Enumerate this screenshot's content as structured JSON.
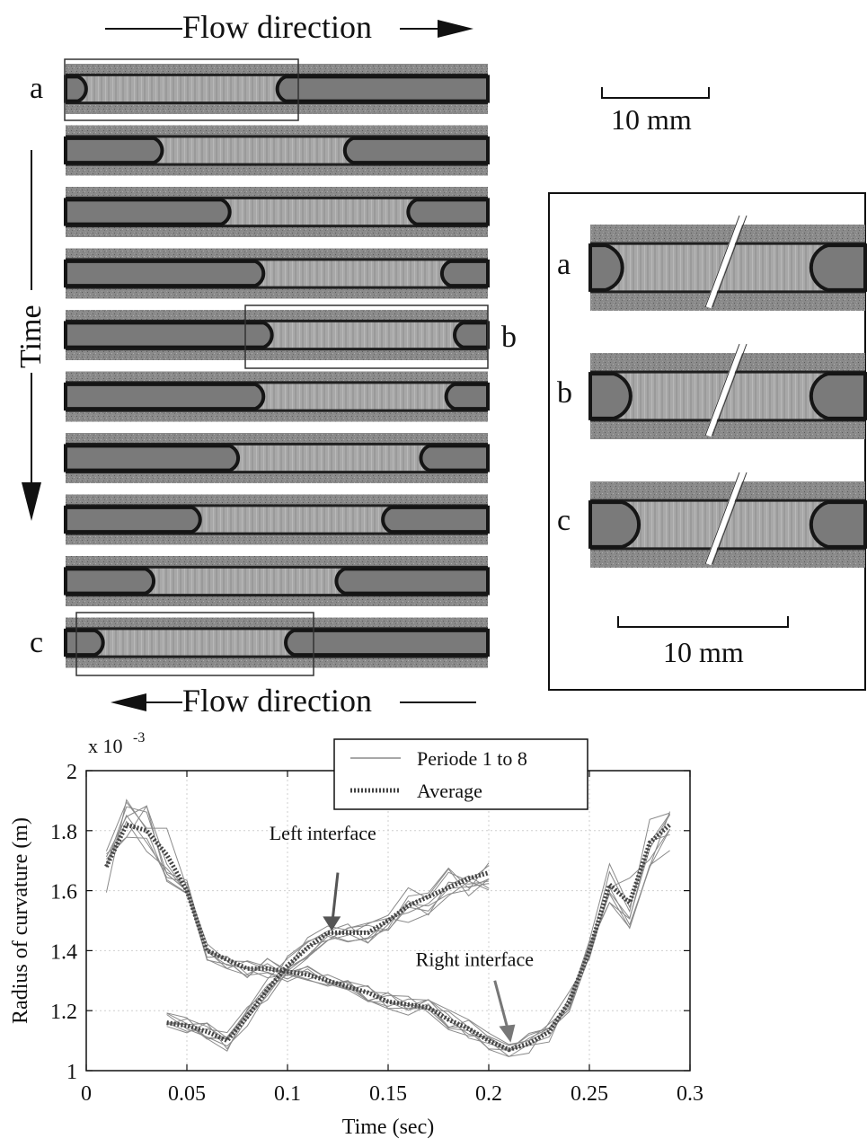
{
  "figure": {
    "flow_top": "Flow direction",
    "flow_bottom": "Flow direction",
    "time_label": "Time",
    "scale_top": "10 mm",
    "scale_inset": "10 mm",
    "frame_letters": [
      "a",
      "b",
      "c"
    ],
    "inset_letters": [
      "a",
      "b",
      "c"
    ]
  },
  "frames": [
    {
      "gap_start": 0.06,
      "gap_end": 0.49
    },
    {
      "gap_start": 0.24,
      "gap_end": 0.65
    },
    {
      "gap_start": 0.4,
      "gap_end": 0.8
    },
    {
      "gap_start": 0.48,
      "gap_end": 0.88
    },
    {
      "gap_start": 0.5,
      "gap_end": 0.91
    },
    {
      "gap_start": 0.48,
      "gap_end": 0.89
    },
    {
      "gap_start": 0.42,
      "gap_end": 0.83
    },
    {
      "gap_start": 0.33,
      "gap_end": 0.74
    },
    {
      "gap_start": 0.22,
      "gap_end": 0.63
    },
    {
      "gap_start": 0.1,
      "gap_end": 0.51
    }
  ],
  "chart_data": {
    "type": "line",
    "title": "",
    "xlabel": "Time (sec)",
    "ylabel": "Radius of curvature (m)",
    "y_multiplier": "x 10",
    "y_exponent": "-3",
    "xlim": [
      0,
      0.3
    ],
    "ylim": [
      1,
      2
    ],
    "xticks": [
      0,
      0.05,
      0.1,
      0.15,
      0.2,
      0.25,
      0.3
    ],
    "xtick_labels": [
      "0",
      "0.05",
      "0.1",
      "0.15",
      "0.2",
      "0.25",
      "0.3"
    ],
    "yticks": [
      1,
      1.2,
      1.4,
      1.6,
      1.8,
      2
    ],
    "ytick_labels": [
      "1",
      "1.2",
      "1.4",
      "1.6",
      "1.8",
      "2"
    ],
    "grid": true,
    "legend": {
      "position": "top-center",
      "entries": [
        "Periode 1 to 8",
        "Average"
      ]
    },
    "annotations": [
      {
        "text": "Left interface",
        "x": 0.122,
        "y": 1.49
      },
      {
        "text": "Right interface",
        "x": 0.21,
        "y": 1.13
      }
    ],
    "series": [
      {
        "name": "Average",
        "group": "right interface",
        "x": [
          0.01,
          0.02,
          0.03,
          0.04,
          0.05,
          0.06,
          0.07,
          0.08,
          0.09,
          0.1,
          0.11,
          0.12,
          0.13,
          0.14,
          0.15,
          0.16,
          0.17,
          0.18,
          0.19,
          0.2,
          0.21,
          0.22,
          0.23,
          0.24,
          0.25,
          0.26,
          0.27,
          0.28,
          0.29
        ],
        "y": [
          1.68,
          1.82,
          1.8,
          1.72,
          1.6,
          1.4,
          1.37,
          1.34,
          1.34,
          1.33,
          1.32,
          1.3,
          1.28,
          1.26,
          1.23,
          1.22,
          1.21,
          1.17,
          1.14,
          1.1,
          1.07,
          1.09,
          1.13,
          1.23,
          1.4,
          1.62,
          1.56,
          1.76,
          1.82
        ]
      },
      {
        "name": "Average",
        "group": "left interface",
        "x": [
          0.04,
          0.05,
          0.06,
          0.07,
          0.08,
          0.09,
          0.1,
          0.11,
          0.12,
          0.13,
          0.14,
          0.15,
          0.16,
          0.17,
          0.18,
          0.19,
          0.2
        ],
        "y": [
          1.16,
          1.15,
          1.13,
          1.1,
          1.18,
          1.27,
          1.35,
          1.41,
          1.46,
          1.46,
          1.46,
          1.5,
          1.55,
          1.58,
          1.61,
          1.64,
          1.66
        ]
      }
    ],
    "periods_count": 8
  }
}
